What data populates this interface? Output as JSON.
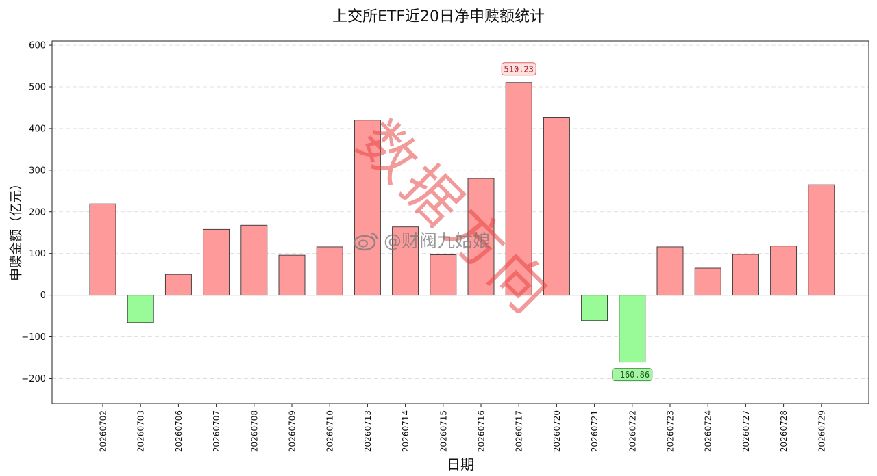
{
  "chart_data": {
    "type": "bar",
    "title": "上交所ETF近20日净申赎额统计",
    "xlabel": "日期",
    "ylabel": "申赎金额（亿元）",
    "categories": [
      "20260702",
      "20260703",
      "20260706",
      "20260707",
      "20260708",
      "20260709",
      "20260710",
      "20260713",
      "20260714",
      "20260715",
      "20260716",
      "20260717",
      "20260720",
      "20260721",
      "20260722",
      "20260723",
      "20260724",
      "20260727",
      "20260728",
      "20260729"
    ],
    "values": [
      219,
      -66,
      50,
      158,
      168,
      96,
      116,
      420,
      164,
      97,
      280,
      510.23,
      427,
      -61,
      -160.86,
      116,
      65,
      98,
      118,
      265
    ],
    "ylim": [
      -260,
      610
    ],
    "yticks": [
      -200,
      -100,
      0,
      100,
      200,
      300,
      400,
      500,
      600
    ],
    "ytick_labels": [
      "−200",
      "−100",
      "0",
      "100",
      "200",
      "300",
      "400",
      "500",
      "600"
    ],
    "annotations": [
      {
        "index": 11,
        "text": "510.23",
        "kind": "max"
      },
      {
        "index": 14,
        "text": "-160.86",
        "kind": "min"
      }
    ],
    "grid": true,
    "colors": {
      "positive": "#ff9a9a",
      "negative": "#98fb98",
      "bar_edge": "#333333",
      "max_label_fill": "#fde0e0",
      "max_label_stroke": "#e06060",
      "max_label_text": "#b02020",
      "min_label_fill": "#a6f5a6",
      "min_label_stroke": "#3a9a3a",
      "min_label_text": "#145a14"
    }
  },
  "watermark": {
    "main_text": "数据方向",
    "weibo_text": "@财阀九姑娘"
  }
}
